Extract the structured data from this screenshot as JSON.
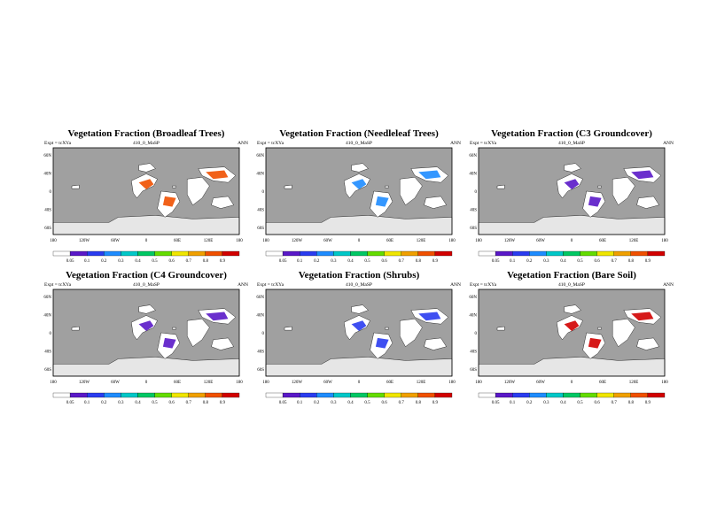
{
  "colors": {
    "ocean": "#a0a0a0",
    "land": "#ffffff",
    "ice": "#e6e6e6",
    "border": "#000000",
    "scale": [
      "#ffffff",
      "#5a18c8",
      "#2a3cf0",
      "#1e8cff",
      "#00c8c8",
      "#00c864",
      "#64dc00",
      "#f0e600",
      "#f0a000",
      "#f05000",
      "#d20000"
    ]
  },
  "chart_data": [
    {
      "type": "heatmap",
      "title": "Vegetation Fraction (Broadleaf Trees)",
      "subtitle_left": "Expt = tcXYa",
      "subtitle_center": "410_0_MaSP",
      "subtitle_right": "ANN",
      "yticklabels": [
        "60N",
        "40N",
        "0",
        "40S",
        "60S"
      ],
      "xticklabels": [
        "180",
        "120W",
        "60W",
        "0",
        "60E",
        "120E",
        "180"
      ],
      "colorbar_labels": [
        "0.05",
        "0.1",
        "0.2",
        "0.3",
        "0.4",
        "0.5",
        "0.6",
        "0.7",
        "0.8",
        "0.9"
      ],
      "dominant_color": "#f05000"
    },
    {
      "type": "heatmap",
      "title": "Vegetation Fraction (Needleleaf Trees)",
      "subtitle_left": "Expt = tcXYa",
      "subtitle_center": "410_0_MaSP",
      "subtitle_right": "ANN",
      "yticklabels": [
        "60N",
        "40N",
        "0",
        "40S",
        "60S"
      ],
      "xticklabels": [
        "180",
        "120W",
        "60W",
        "0",
        "60E",
        "120E",
        "180"
      ],
      "colorbar_labels": [
        "0.05",
        "0.1",
        "0.2",
        "0.3",
        "0.4",
        "0.5",
        "0.6",
        "0.7",
        "0.8",
        "0.9"
      ],
      "dominant_color": "#1e8cff"
    },
    {
      "type": "heatmap",
      "title": "Vegetation Fraction (C3 Groundcover)",
      "subtitle_left": "Expt = tcXYa",
      "subtitle_center": "410_0_MaSP",
      "subtitle_right": "ANN",
      "yticklabels": [
        "60N",
        "40N",
        "0",
        "40S",
        "60S"
      ],
      "xticklabels": [
        "180",
        "120W",
        "60W",
        "0",
        "60E",
        "120E",
        "180"
      ],
      "colorbar_labels": [
        "0.05",
        "0.1",
        "0.2",
        "0.3",
        "0.4",
        "0.5",
        "0.6",
        "0.7",
        "0.8",
        "0.9"
      ],
      "dominant_color": "#5a18c8"
    },
    {
      "type": "heatmap",
      "title": "Vegetation Fraction (C4 Groundcover)",
      "subtitle_left": "Expt = tcXYa",
      "subtitle_center": "410_0_MaSP",
      "subtitle_right": "ANN",
      "yticklabels": [
        "60N",
        "40N",
        "0",
        "40S",
        "60S"
      ],
      "xticklabels": [
        "180",
        "120W",
        "60W",
        "0",
        "60E",
        "120E",
        "180"
      ],
      "colorbar_labels": [
        "0.05",
        "0.1",
        "0.2",
        "0.3",
        "0.4",
        "0.5",
        "0.6",
        "0.7",
        "0.8",
        "0.9"
      ],
      "dominant_color": "#5a18c8"
    },
    {
      "type": "heatmap",
      "title": "Vegetation Fraction (Shrubs)",
      "subtitle_left": "Expt = tcXYa",
      "subtitle_center": "410_0_MaSP",
      "subtitle_right": "ANN",
      "yticklabels": [
        "60N",
        "40N",
        "0",
        "40S",
        "60S"
      ],
      "xticklabels": [
        "180",
        "120W",
        "60W",
        "0",
        "60E",
        "120E",
        "180"
      ],
      "colorbar_labels": [
        "0.05",
        "0.1",
        "0.2",
        "0.3",
        "0.4",
        "0.5",
        "0.6",
        "0.7",
        "0.8",
        "0.9"
      ],
      "dominant_color": "#2a3cf0"
    },
    {
      "type": "heatmap",
      "title": "Vegetation Fraction (Bare Soil)",
      "subtitle_left": "Expt = tcXYa",
      "subtitle_center": "410_0_MaSP",
      "subtitle_right": "ANN",
      "yticklabels": [
        "60N",
        "40N",
        "0",
        "40S",
        "60S"
      ],
      "xticklabels": [
        "180",
        "120W",
        "60W",
        "0",
        "60E",
        "120E",
        "180"
      ],
      "colorbar_labels": [
        "0.05",
        "0.1",
        "0.2",
        "0.3",
        "0.4",
        "0.5",
        "0.6",
        "0.7",
        "0.8",
        "0.9"
      ],
      "dominant_color": "#d20000"
    }
  ]
}
